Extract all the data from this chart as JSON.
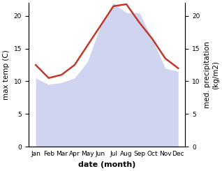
{
  "months": [
    "Jan",
    "Feb",
    "Mar",
    "Apr",
    "May",
    "Jun",
    "Jul",
    "Aug",
    "Sep",
    "Oct",
    "Nov",
    "Dec"
  ],
  "temperature": [
    12.5,
    10.5,
    11.0,
    12.5,
    15.5,
    18.5,
    21.5,
    21.8,
    19.0,
    16.5,
    13.5,
    12.0
  ],
  "precipitation": [
    10.5,
    9.5,
    9.8,
    10.5,
    13.0,
    18.5,
    22.0,
    20.5,
    20.5,
    16.5,
    12.0,
    11.5
  ],
  "temp_color": "#c0392b",
  "precip_fill_color": "#b0b8e8",
  "precip_fill_alpha": 0.6,
  "ylabel_left": "max temp (C)",
  "ylabel_right": "med. precipitation\n(kg/m2)",
  "xlabel": "date (month)",
  "ylim": [
    0,
    22
  ],
  "yticks": [
    0,
    5,
    10,
    15,
    20
  ],
  "background_color": "#ffffff",
  "label_fontsize": 7.5,
  "tick_fontsize": 6.5,
  "xlabel_fontsize": 8,
  "linewidth": 1.8
}
